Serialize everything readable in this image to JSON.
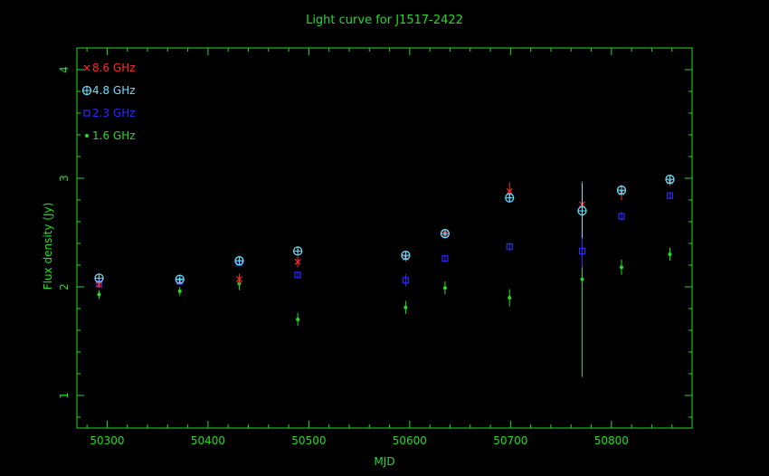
{
  "chart_data": {
    "type": "scatter",
    "title": "Light curve for J1517-2422",
    "xlabel": "MJD",
    "ylabel": "Flux density (Jy)",
    "xlim": [
      50270,
      50880
    ],
    "ylim": [
      0.7,
      4.2
    ],
    "x_ticks": [
      50300,
      50400,
      50500,
      50600,
      50700,
      50800
    ],
    "y_ticks": [
      1,
      2,
      3,
      4
    ],
    "grid": false,
    "legend_position": "top-left",
    "colors": {
      "background": "#000000",
      "axes": "#22dd22",
      "text": "#22dd22"
    },
    "series": [
      {
        "name": "8.6 GHz",
        "marker": "cross",
        "color": "#ff2a2a",
        "points": [
          {
            "x": 50292,
            "y": 2.02,
            "err": 0.03
          },
          {
            "x": 50372,
            "y": 2.05,
            "err": 0.03
          },
          {
            "x": 50431,
            "y": 2.07,
            "err": 0.05
          },
          {
            "x": 50489,
            "y": 2.23,
            "err": 0.05
          },
          {
            "x": 50596,
            "y": 2.27,
            "err": 0.04
          },
          {
            "x": 50635,
            "y": 2.49,
            "err": 0.03
          },
          {
            "x": 50699,
            "y": 2.88,
            "err": 0.08
          },
          {
            "x": 50771,
            "y": 2.76,
            "err": 0.05
          },
          {
            "x": 50810,
            "y": 2.87,
            "err": 0.07
          },
          {
            "x": 50858,
            "y": 2.97,
            "err": 0.04
          }
        ]
      },
      {
        "name": "4.8 GHz",
        "marker": "circle-plus",
        "color": "#66e0ff",
        "points": [
          {
            "x": 50292,
            "y": 2.08,
            "err": 0.02
          },
          {
            "x": 50372,
            "y": 2.07,
            "err": 0.02
          },
          {
            "x": 50431,
            "y": 2.24,
            "err": 0.02
          },
          {
            "x": 50489,
            "y": 2.33,
            "err": 0.02
          },
          {
            "x": 50596,
            "y": 2.29,
            "err": 0.02
          },
          {
            "x": 50635,
            "y": 2.49,
            "err": 0.02
          },
          {
            "x": 50699,
            "y": 2.82,
            "err": 0.04
          },
          {
            "x": 50771,
            "y": 2.7,
            "err": 0.25
          },
          {
            "x": 50810,
            "y": 2.89,
            "err": 0.03
          },
          {
            "x": 50858,
            "y": 2.99,
            "err": 0.02
          }
        ]
      },
      {
        "name": "2.3 GHz",
        "marker": "square",
        "color": "#2a2aff",
        "points": [
          {
            "x": 50292,
            "y": 2.03,
            "err": 0.02
          },
          {
            "x": 50372,
            "y": 2.05,
            "err": 0.02
          },
          {
            "x": 50431,
            "y": 2.22,
            "err": 0.02
          },
          {
            "x": 50489,
            "y": 2.11,
            "err": 0.03
          },
          {
            "x": 50596,
            "y": 2.06,
            "err": 0.06
          },
          {
            "x": 50635,
            "y": 2.26,
            "err": 0.03
          },
          {
            "x": 50699,
            "y": 2.37,
            "err": 0.04
          },
          {
            "x": 50771,
            "y": 2.33,
            "err": 0.15
          },
          {
            "x": 50810,
            "y": 2.65,
            "err": 0.04
          },
          {
            "x": 50858,
            "y": 2.84,
            "err": 0.03
          }
        ]
      },
      {
        "name": "1.6 GHz",
        "marker": "dot",
        "color": "#22dd22",
        "points": [
          {
            "x": 50292,
            "y": 1.93,
            "err": 0.04
          },
          {
            "x": 50372,
            "y": 1.96,
            "err": 0.04
          },
          {
            "x": 50431,
            "y": 2.03,
            "err": 0.06
          },
          {
            "x": 50489,
            "y": 1.7,
            "err": 0.06
          },
          {
            "x": 50596,
            "y": 1.81,
            "err": 0.06
          },
          {
            "x": 50635,
            "y": 1.99,
            "err": 0.06
          },
          {
            "x": 50699,
            "y": 1.9,
            "err": 0.08
          },
          {
            "x": 50771,
            "y": 2.07,
            "err": 0.9
          },
          {
            "x": 50810,
            "y": 2.18,
            "err": 0.07
          },
          {
            "x": 50858,
            "y": 2.3,
            "err": 0.06
          }
        ]
      }
    ]
  }
}
